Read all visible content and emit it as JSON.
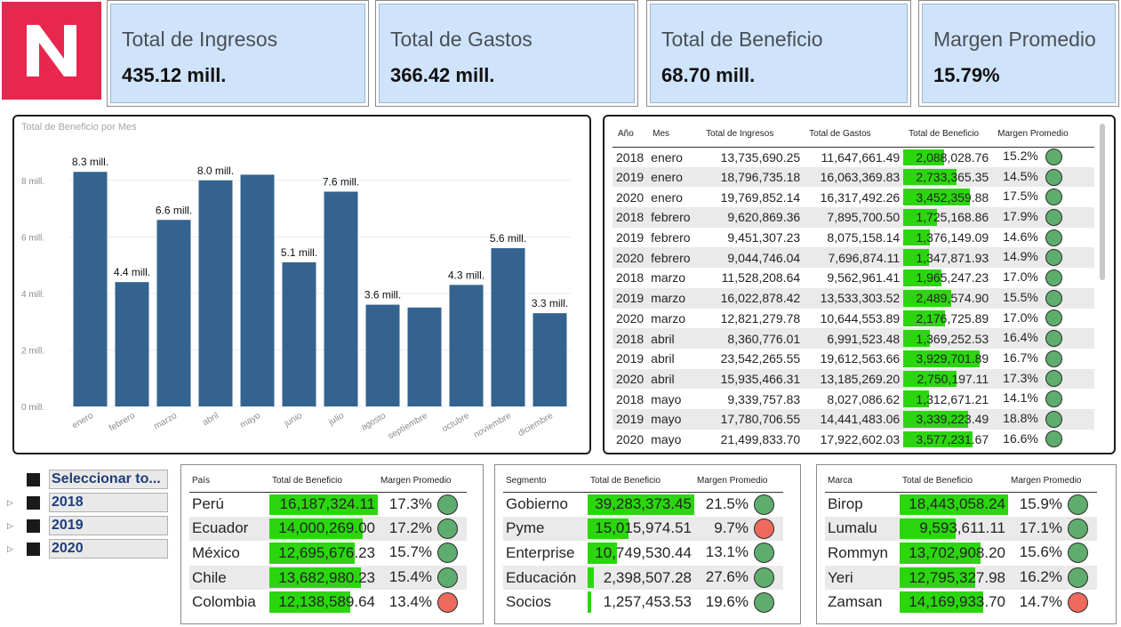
{
  "kpis": [
    {
      "title": "Total de Ingresos",
      "value": "435.12 mill."
    },
    {
      "title": "Total de Gastos",
      "value": "366.42 mill."
    },
    {
      "title": "Total de Beneficio",
      "value": "68.70 mill."
    },
    {
      "title": "Margen Promedio",
      "value": "15.79%"
    }
  ],
  "chart_data": {
    "type": "bar",
    "title": "Total de Beneficio por Mes",
    "categories": [
      "enero",
      "febrero",
      "marzo",
      "abril",
      "mayo",
      "junio",
      "julio",
      "agosto",
      "septiembre",
      "octubre",
      "noviembre",
      "diciembre"
    ],
    "values": [
      8.3,
      4.4,
      6.6,
      8.0,
      8.2,
      5.1,
      7.6,
      3.6,
      3.5,
      4.3,
      5.6,
      3.3
    ],
    "data_labels": [
      "8.3 mill.",
      "4.4 mill.",
      "6.6 mill.",
      "8.0 mill.",
      "",
      "5.1 mill.",
      "7.6 mill.",
      "3.6 mill.",
      "",
      "4.3 mill.",
      "5.6 mill.",
      "3.3 mill."
    ],
    "y_ticks": [
      "0 mill.",
      "2 mill.",
      "4 mill.",
      "6 mill.",
      "8 mill."
    ],
    "ylim": [
      0,
      9
    ],
    "bar_color": "#34638f",
    "grid": true
  },
  "mes_table": {
    "headers": [
      "Año",
      "Mes",
      "Total de Ingresos",
      "Total de Gastos",
      "Total de Beneficio",
      "Margen Promedio"
    ],
    "rows": [
      {
        "year": "2018",
        "month": "enero",
        "ingresos": "13,735,690.25",
        "gastos": "11,647,661.49",
        "beneficio": "2,088,028.76",
        "benef": 2088028.76,
        "margen": "15.2%",
        "status": "green"
      },
      {
        "year": "2019",
        "month": "enero",
        "ingresos": "18,796,735.18",
        "gastos": "16,063,369.83",
        "beneficio": "2,733,365.35",
        "benef": 2733365.35,
        "margen": "14.5%",
        "status": "green"
      },
      {
        "year": "2020",
        "month": "enero",
        "ingresos": "19,769,852.14",
        "gastos": "16,317,492.26",
        "beneficio": "3,452,359.88",
        "benef": 3452359.88,
        "margen": "17.5%",
        "status": "green"
      },
      {
        "year": "2018",
        "month": "febrero",
        "ingresos": "9,620,869.36",
        "gastos": "7,895,700.50",
        "beneficio": "1,725,168.86",
        "benef": 1725168.86,
        "margen": "17.9%",
        "status": "green"
      },
      {
        "year": "2019",
        "month": "febrero",
        "ingresos": "9,451,307.23",
        "gastos": "8,075,158.14",
        "beneficio": "1,376,149.09",
        "benef": 1376149.09,
        "margen": "14.6%",
        "status": "green"
      },
      {
        "year": "2020",
        "month": "febrero",
        "ingresos": "9,044,746.04",
        "gastos": "7,696,874.11",
        "beneficio": "1,347,871.93",
        "benef": 1347871.93,
        "margen": "14.9%",
        "status": "green"
      },
      {
        "year": "2018",
        "month": "marzo",
        "ingresos": "11,528,208.64",
        "gastos": "9,562,961.41",
        "beneficio": "1,965,247.23",
        "benef": 1965247.23,
        "margen": "17.0%",
        "status": "green"
      },
      {
        "year": "2019",
        "month": "marzo",
        "ingresos": "16,022,878.42",
        "gastos": "13,533,303.52",
        "beneficio": "2,489,574.90",
        "benef": 2489574.9,
        "margen": "15.5%",
        "status": "green"
      },
      {
        "year": "2020",
        "month": "marzo",
        "ingresos": "12,821,279.78",
        "gastos": "10,644,553.89",
        "beneficio": "2,176,725.89",
        "benef": 2176725.89,
        "margen": "17.0%",
        "status": "green"
      },
      {
        "year": "2018",
        "month": "abril",
        "ingresos": "8,360,776.01",
        "gastos": "6,991,523.48",
        "beneficio": "1,369,252.53",
        "benef": 1369252.53,
        "margen": "16.4%",
        "status": "green"
      },
      {
        "year": "2019",
        "month": "abril",
        "ingresos": "23,542,265.55",
        "gastos": "19,612,563.66",
        "beneficio": "3,929,701.89",
        "benef": 3929701.89,
        "margen": "16.7%",
        "status": "green"
      },
      {
        "year": "2020",
        "month": "abril",
        "ingresos": "15,935,466.31",
        "gastos": "13,185,269.20",
        "beneficio": "2,750,197.11",
        "benef": 2750197.11,
        "margen": "17.3%",
        "status": "green"
      },
      {
        "year": "2018",
        "month": "mayo",
        "ingresos": "9,339,757.83",
        "gastos": "8,027,086.62",
        "beneficio": "1,312,671.21",
        "benef": 1312671.21,
        "margen": "14.1%",
        "status": "green"
      },
      {
        "year": "2019",
        "month": "mayo",
        "ingresos": "17,780,706.55",
        "gastos": "14,441,483.06",
        "beneficio": "3,339,223.49",
        "benef": 3339223.49,
        "margen": "18.8%",
        "status": "green"
      },
      {
        "year": "2020",
        "month": "mayo",
        "ingresos": "21,499,833.70",
        "gastos": "17,922,602.03",
        "beneficio": "3,577,231.67",
        "benef": 3577231.67,
        "margen": "16.6%",
        "status": "green"
      }
    ]
  },
  "slicer": {
    "items": [
      {
        "label": "Seleccionar to...",
        "chevron": ""
      },
      {
        "label": "2018",
        "chevron": "▷"
      },
      {
        "label": "2019",
        "chevron": "▷"
      },
      {
        "label": "2020",
        "chevron": "▷"
      }
    ]
  },
  "pais_table": {
    "headers": [
      "País",
      "Total de Beneficio",
      "Margen Promedio"
    ],
    "rows": [
      {
        "name": "Perú",
        "beneficio": "16,187,324.11",
        "benef": 16187324.11,
        "margen": "17.3%",
        "status": "green"
      },
      {
        "name": "Ecuador",
        "beneficio": "14,000,269.00",
        "benef": 14000269.0,
        "margen": "17.2%",
        "status": "green"
      },
      {
        "name": "México",
        "beneficio": "12,695,676.23",
        "benef": 12695676.23,
        "margen": "15.7%",
        "status": "green"
      },
      {
        "name": "Chile",
        "beneficio": "13,682,980.23",
        "benef": 13682980.23,
        "margen": "15.4%",
        "status": "green"
      },
      {
        "name": "Colombia",
        "beneficio": "12,138,589.64",
        "benef": 12138589.64,
        "margen": "13.4%",
        "status": "red"
      }
    ]
  },
  "segmento_table": {
    "headers": [
      "Segmento",
      "Total de Beneficio",
      "Margen Promedio"
    ],
    "rows": [
      {
        "name": "Gobierno",
        "beneficio": "39,283,373.45",
        "benef": 39283373.45,
        "margen": "21.5%",
        "status": "green"
      },
      {
        "name": "Pyme",
        "beneficio": "15,015,974.51",
        "benef": 15015974.51,
        "margen": "9.7%",
        "status": "red"
      },
      {
        "name": "Enterprise",
        "beneficio": "10,749,530.44",
        "benef": 10749530.44,
        "margen": "13.1%",
        "status": "green"
      },
      {
        "name": "Educación",
        "beneficio": "2,398,507.28",
        "benef": 2398507.28,
        "margen": "27.6%",
        "status": "green"
      },
      {
        "name": "Socios",
        "beneficio": "1,257,453.53",
        "benef": 1257453.53,
        "margen": "19.6%",
        "status": "green"
      }
    ]
  },
  "marca_table": {
    "headers": [
      "Marca",
      "Total de Beneficio",
      "Margen Promedio"
    ],
    "rows": [
      {
        "name": "Birop",
        "beneficio": "18,443,058.24",
        "benef": 18443058.24,
        "margen": "15.9%",
        "status": "green"
      },
      {
        "name": "Lumalu",
        "beneficio": "9,593,611.11",
        "benef": 9593611.11,
        "margen": "17.1%",
        "status": "green"
      },
      {
        "name": "Rommyn",
        "beneficio": "13,702,908.20",
        "benef": 13702908.2,
        "margen": "15.6%",
        "status": "green"
      },
      {
        "name": "Yeri",
        "beneficio": "12,795,327.98",
        "benef": 12795327.98,
        "margen": "16.2%",
        "status": "green"
      },
      {
        "name": "Zamsan",
        "beneficio": "14,169,933.70",
        "benef": 14169933.7,
        "margen": "14.7%",
        "status": "red"
      }
    ]
  },
  "colors": {
    "databar": "#2bd60e",
    "kpi_bg": "#cfe4fb",
    "logo_bg": "#e8274f",
    "status_green": "#5fad6e",
    "status_red": "#ee6a5c"
  }
}
